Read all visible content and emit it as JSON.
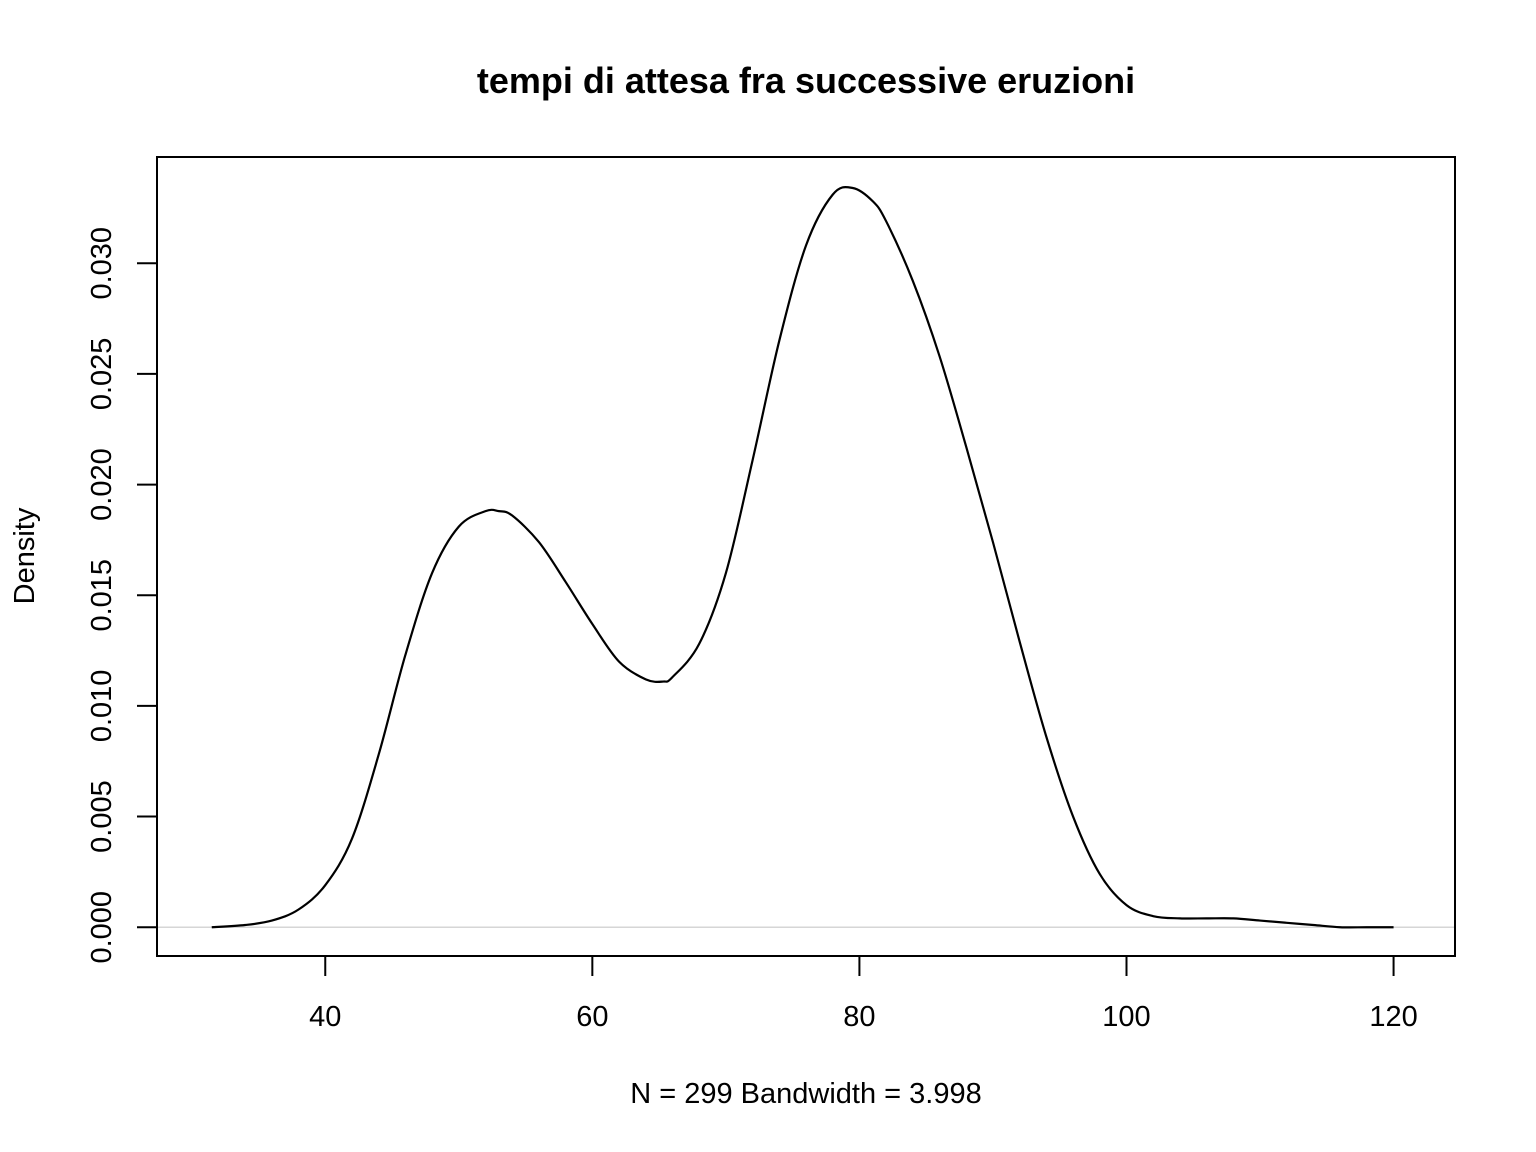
{
  "chart_data": {
    "type": "line",
    "title": "tempi di attesa fra successive eruzioni",
    "xlabel": "N = 299   Bandwidth = 3.998",
    "ylabel": "Density",
    "xlim": [
      27.4,
      124.6
    ],
    "ylim": [
      -0.0013,
      0.0348
    ],
    "x_ticks": [
      40,
      60,
      80,
      100,
      120
    ],
    "x_tick_labels": [
      "40",
      "60",
      "80",
      "100",
      "120"
    ],
    "y_ticks": [
      0.0,
      0.005,
      0.01,
      0.015,
      0.02,
      0.025,
      0.03
    ],
    "y_tick_labels": [
      "0.000",
      "0.005",
      "0.010",
      "0.015",
      "0.020",
      "0.025",
      "0.030"
    ],
    "grid": false,
    "baseline": 0,
    "series": [
      {
        "color": "#000000",
        "x": [
          31.5,
          34,
          36,
          38,
          40,
          42,
          44,
          46,
          48,
          50,
          52,
          53,
          54,
          56,
          58,
          60,
          62,
          64,
          65.3,
          66,
          68,
          70,
          72,
          74,
          76,
          78,
          79.5,
          81,
          82,
          84,
          86,
          88,
          90,
          92,
          94,
          96,
          98,
          100,
          102,
          104,
          106,
          108,
          110,
          112,
          114,
          116,
          118,
          120
        ],
        "y": [
          0.0,
          0.0001,
          0.0003,
          0.0008,
          0.0019,
          0.004,
          0.0078,
          0.0123,
          0.016,
          0.0181,
          0.0188,
          0.0188,
          0.0186,
          0.0174,
          0.0156,
          0.0137,
          0.012,
          0.0112,
          0.0111,
          0.0113,
          0.0128,
          0.016,
          0.0211,
          0.0265,
          0.0308,
          0.0331,
          0.0334,
          0.0328,
          0.0319,
          0.0292,
          0.0258,
          0.0217,
          0.0174,
          0.0129,
          0.0086,
          0.005,
          0.0024,
          0.001,
          0.0005,
          0.0004,
          0.0004,
          0.0004,
          0.0003,
          0.0002,
          0.0001,
          0.0,
          0.0,
          0.0
        ]
      }
    ]
  }
}
